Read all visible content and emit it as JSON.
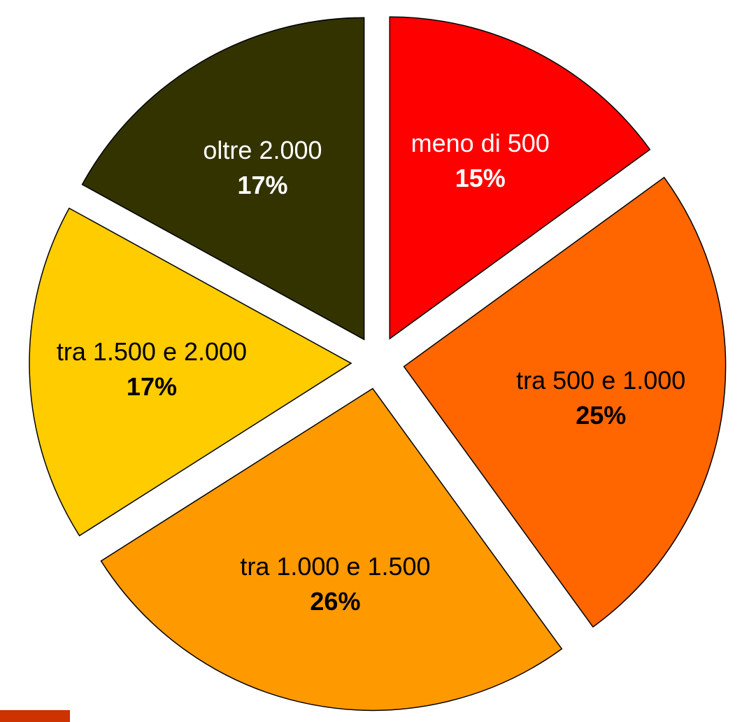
{
  "chart_data": {
    "type": "pie",
    "categories": [
      "meno di 500",
      "tra 500 e 1.000",
      "tra 1.000 e 1.500",
      "tra 1.500 e 2.000",
      "oltre 2.000"
    ],
    "values": [
      15,
      25,
      26,
      17,
      17
    ],
    "value_labels": [
      "15%",
      "25%",
      "26%",
      "17%",
      "17%"
    ],
    "colors": [
      "#ff0000",
      "#ff6600",
      "#ff9900",
      "#ffcc00",
      "#333300"
    ]
  }
}
